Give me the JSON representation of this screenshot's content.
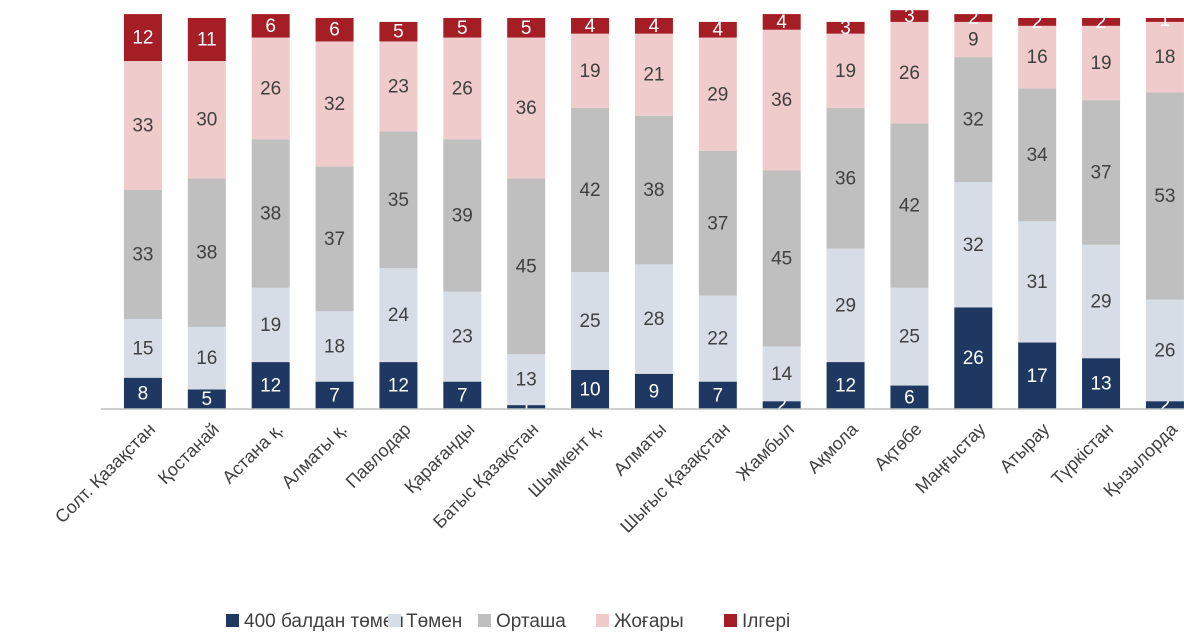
{
  "chart_data": {
    "type": "stacked_bar",
    "categories": [
      "Солт. Қазақстан",
      "Қостанай",
      "Астана қ.",
      "Алматы қ.",
      "Павлодар",
      "Қарағанды",
      "Батыс Қазақстан",
      "Шымкент қ.",
      "Алматы",
      "Шығыс Қазақстан",
      "Жамбыл",
      "Ақмола",
      "Ақтөбе",
      "Маңғыстау",
      "Атырау",
      "Түркістан",
      "Қызылорда"
    ],
    "series": [
      {
        "name": "400 балдан төмен",
        "color": "#1f3861",
        "values": [
          8,
          5,
          12,
          7,
          12,
          7,
          1,
          10,
          9,
          7,
          2,
          12,
          6,
          26,
          17,
          13,
          2
        ]
      },
      {
        "name": "Төмен",
        "color": "#d7dde7",
        "values": [
          15,
          16,
          19,
          18,
          24,
          23,
          13,
          25,
          28,
          22,
          14,
          29,
          25,
          32,
          31,
          29,
          26
        ]
      },
      {
        "name": "Орташа",
        "color": "#bfbfbf",
        "values": [
          33,
          38,
          38,
          37,
          35,
          39,
          45,
          42,
          38,
          37,
          45,
          36,
          42,
          32,
          34,
          37,
          53
        ]
      },
      {
        "name": "Жоғары",
        "color": "#efcbcb",
        "values": [
          33,
          30,
          26,
          32,
          23,
          26,
          36,
          19,
          21,
          29,
          36,
          19,
          26,
          9,
          16,
          19,
          18
        ]
      },
      {
        "name": "Ілгері",
        "color": "#a51d25",
        "values": [
          12,
          11,
          6,
          6,
          5,
          5,
          5,
          4,
          4,
          4,
          4,
          3,
          3,
          2,
          2,
          2,
          1
        ]
      }
    ],
    "ylim": [
      0,
      100
    ],
    "legend": "bottom"
  }
}
